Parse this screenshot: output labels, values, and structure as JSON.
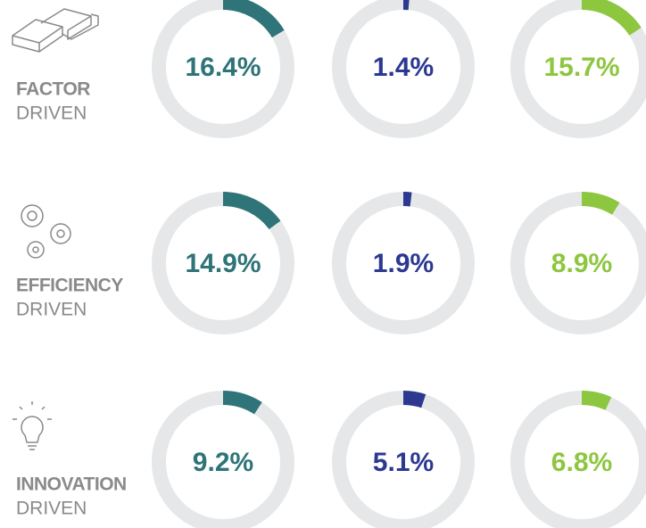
{
  "type": "donut",
  "ylim": [
    0,
    100
  ],
  "colors": [
    "#2e7478",
    "#2b3990",
    "#8dc63f"
  ],
  "track_color": "#e6e7e8",
  "rows": [
    {
      "title": "FACTOR",
      "subtitle": "DRIVEN",
      "values": [
        16.4,
        1.4,
        15.7
      ],
      "value_labels": [
        "16.4%",
        "1.4%",
        "15.7%"
      ]
    },
    {
      "title": "EFFICIENCY",
      "subtitle": "DRIVEN",
      "values": [
        14.9,
        1.9,
        8.9
      ],
      "value_labels": [
        "14.9%",
        "1.9%",
        "8.9%"
      ]
    },
    {
      "title": "INNOVATION",
      "subtitle": "DRIVEN",
      "values": [
        9.2,
        5.1,
        6.8
      ],
      "value_labels": [
        "9.2%",
        "5.1%",
        "6.8%"
      ]
    }
  ]
}
